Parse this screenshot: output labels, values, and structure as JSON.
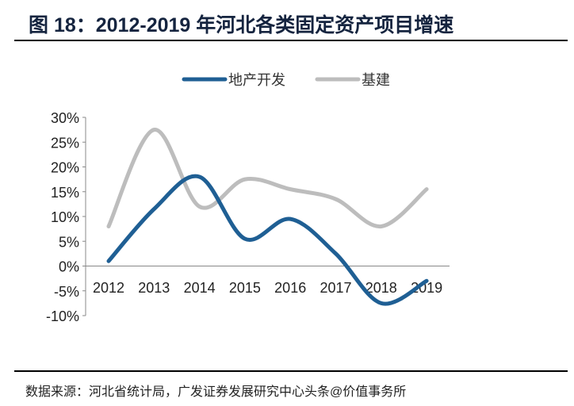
{
  "title": "图 18：2012-2019 年河北各类固定资产项目增速",
  "source": "数据来源：河北省统计局，广发证券发展研究中心头条@价值事务所",
  "chart_data": {
    "type": "line",
    "smooth": true,
    "categories": [
      "2012",
      "2013",
      "2014",
      "2015",
      "2016",
      "2017",
      "2018",
      "2019"
    ],
    "series": [
      {
        "name": "地产开发",
        "color": "#1f5f94",
        "values": [
          1,
          11.5,
          18,
          5.5,
          9.5,
          2.5,
          -7.5,
          -3
        ]
      },
      {
        "name": "基建",
        "color": "#bdbdbd",
        "values": [
          8,
          27.5,
          12,
          17.5,
          15.5,
          13.5,
          8,
          15.5
        ]
      }
    ],
    "ylim": [
      -10,
      30
    ],
    "yticks": [
      "-10%",
      "-5%",
      "0%",
      "5%",
      "10%",
      "15%",
      "20%",
      "25%",
      "30%"
    ],
    "ytick_values": [
      -10,
      -5,
      0,
      5,
      10,
      15,
      20,
      25,
      30
    ],
    "legend": "top-center",
    "grid": false
  }
}
